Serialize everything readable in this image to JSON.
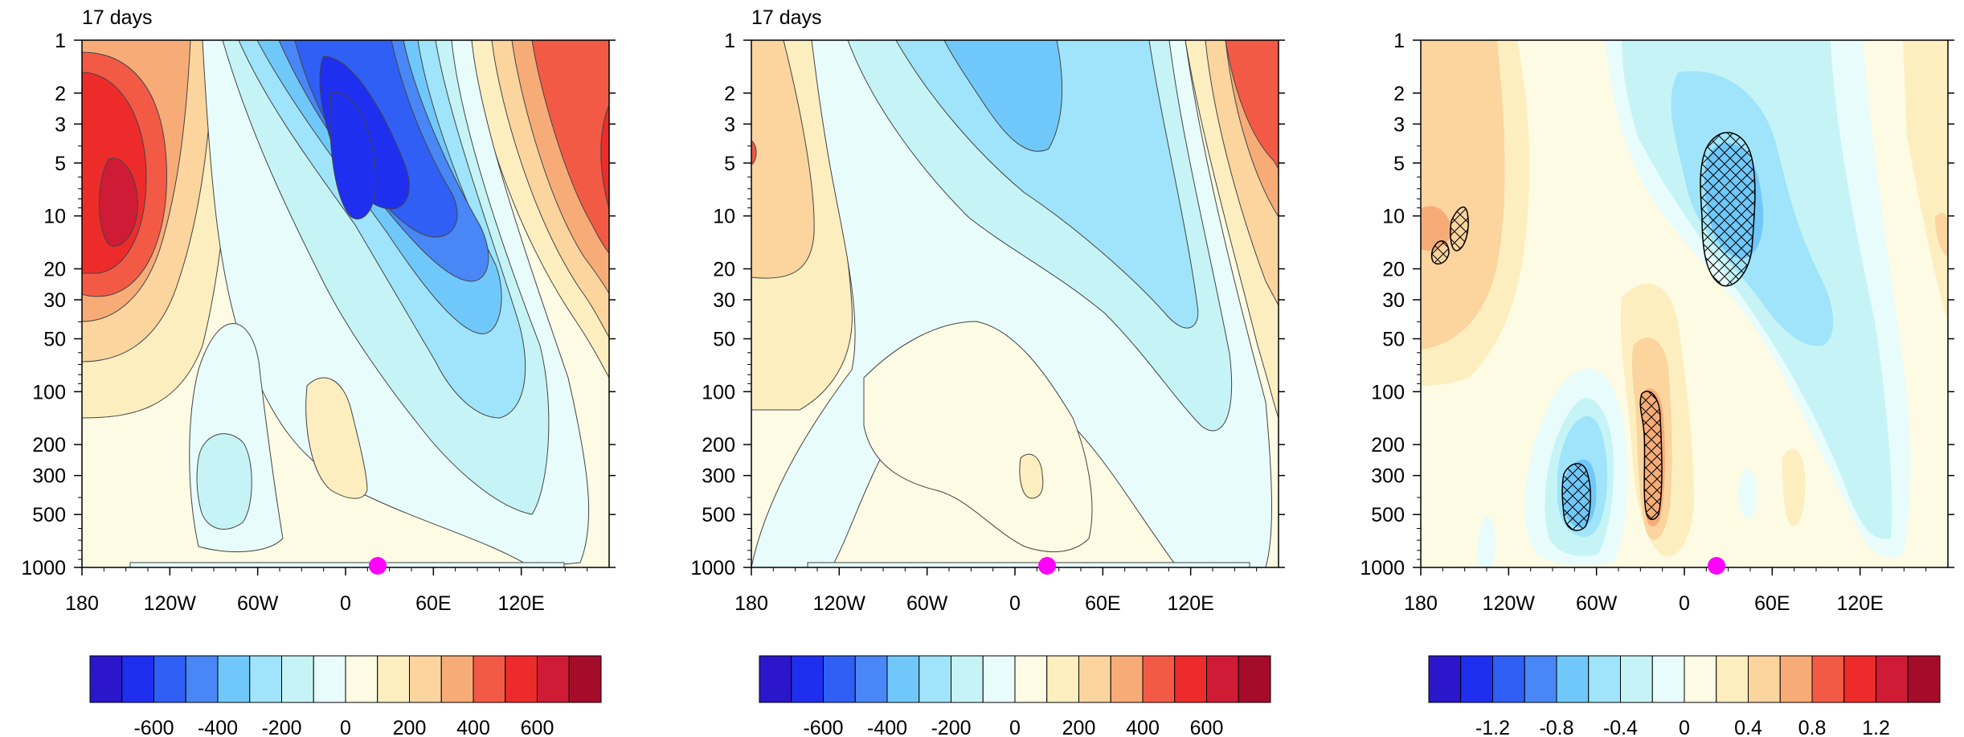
{
  "panel_titles": [
    "17 days",
    "17 days",
    ""
  ],
  "chart_data": [
    {
      "type": "heatmap",
      "title": "17 days",
      "xlabel": "",
      "ylabel": "",
      "x_ticks": [
        "180",
        "120W",
        "60W",
        "0",
        "60E",
        "120E"
      ],
      "y_ticks": [
        "1",
        "2",
        "3",
        "5",
        "10",
        "20",
        "30",
        "50",
        "100",
        "200",
        "300",
        "500",
        "1000"
      ],
      "y_scale": "log",
      "xlim": [
        -180,
        180
      ],
      "ylim": [
        1000,
        1
      ],
      "marker": {
        "x": 20,
        "y": 1000,
        "color": "#ff00ff"
      },
      "colorbar_labels": [
        "-600",
        "-400",
        "-200",
        "0",
        "200",
        "400",
        "600"
      ],
      "palette": [
        "#2b16cc",
        "#1f2ff0",
        "#2f5ff5",
        "#4887f5",
        "#70c8fa",
        "#9fe4fa",
        "#c6f4f6",
        "#e8fcfc",
        "#fdfbe3",
        "#fdeec0",
        "#fbd49e",
        "#f7ac78",
        "#f35a46",
        "#ee2b2b",
        "#d01b36",
        "#a50c2a"
      ],
      "features": [
        {
          "name": "positive maximum",
          "x": -158,
          "y": 7,
          "value": 700
        },
        {
          "name": "negative minimum",
          "x": 10,
          "y": 6,
          "value": -700
        }
      ]
    },
    {
      "type": "heatmap",
      "title": "17 days",
      "xlabel": "",
      "ylabel": "",
      "x_ticks": [
        "180",
        "120W",
        "60W",
        "0",
        "60E",
        "120E"
      ],
      "y_ticks": [
        "1",
        "2",
        "3",
        "5",
        "10",
        "20",
        "30",
        "50",
        "100",
        "200",
        "300",
        "500",
        "1000"
      ],
      "y_scale": "log",
      "xlim": [
        -180,
        180
      ],
      "ylim": [
        1000,
        1
      ],
      "marker": {
        "x": 20,
        "y": 1000,
        "color": "#ff00ff"
      },
      "colorbar_labels": [
        "-600",
        "-400",
        "-200",
        "0",
        "200",
        "400",
        "600"
      ],
      "palette": [
        "#2b16cc",
        "#1f2ff0",
        "#2f5ff5",
        "#4887f5",
        "#70c8fa",
        "#9fe4fa",
        "#c6f4f6",
        "#e8fcfc",
        "#fdfbe3",
        "#fdeec0",
        "#fbd49e",
        "#f7ac78",
        "#f35a46",
        "#ee2b2b",
        "#d01b36",
        "#a50c2a"
      ],
      "features": [
        {
          "name": "positive maximum",
          "x": 165,
          "y": 2,
          "value": 500
        },
        {
          "name": "negative minimum",
          "x": 0,
          "y": 2,
          "value": -300
        }
      ]
    },
    {
      "type": "heatmap",
      "title": "",
      "xlabel": "",
      "ylabel": "",
      "x_ticks": [
        "180",
        "120W",
        "60W",
        "0",
        "60E",
        "120E"
      ],
      "y_ticks": [
        "1",
        "2",
        "3",
        "5",
        "10",
        "20",
        "30",
        "50",
        "100",
        "200",
        "300",
        "500",
        "1000"
      ],
      "y_scale": "log",
      "xlim": [
        -180,
        180
      ],
      "ylim": [
        1000,
        1
      ],
      "marker": {
        "x": 20,
        "y": 1000,
        "color": "#ff00ff"
      },
      "colorbar_labels": [
        "-1.2",
        "-0.8",
        "-0.4",
        "0",
        "0.4",
        "0.8",
        "1.2"
      ],
      "palette": [
        "#2b16cc",
        "#1f2ff0",
        "#2f5ff5",
        "#4887f5",
        "#70c8fa",
        "#9fe4fa",
        "#c6f4f6",
        "#e8fcfc",
        "#fdfbe3",
        "#fdeec0",
        "#fbd49e",
        "#f7ac78",
        "#f35a46",
        "#ee2b2b",
        "#d01b36",
        "#a50c2a"
      ],
      "features": [
        {
          "name": "hatched negative region",
          "x": 20,
          "y": 12,
          "value": -0.6
        },
        {
          "name": "hatched negative region",
          "x": -84,
          "y": 500,
          "value": -0.6
        },
        {
          "name": "hatched positive region",
          "x": -28,
          "y": 250,
          "value": 0.6
        },
        {
          "name": "hatched positive region",
          "x": -160,
          "y": 15,
          "value": 0.5
        }
      ]
    }
  ]
}
